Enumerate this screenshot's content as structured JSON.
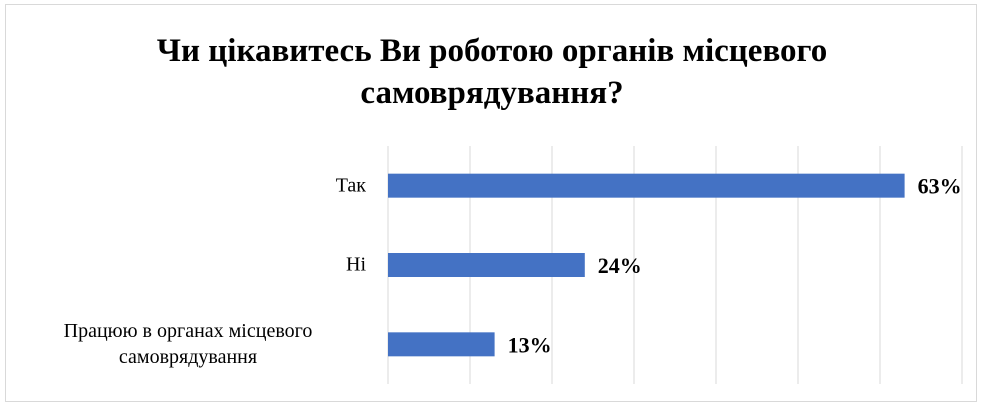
{
  "chart_data": {
    "type": "bar",
    "orientation": "horizontal",
    "title_lines": [
      "Чи цікавитесь Ви роботою органів місцевого",
      "самоврядування?"
    ],
    "categories": [
      [
        "Так"
      ],
      [
        "Ні"
      ],
      [
        "Працюю в органах місцевого",
        "самоврядування"
      ]
    ],
    "values": [
      63,
      24,
      13
    ],
    "value_labels": [
      "63%",
      "24%",
      "13%"
    ],
    "xlim": [
      0,
      70
    ],
    "grid": true,
    "legend": "none",
    "bar_color": "#4472C4",
    "grid_color": "#d9d9d9"
  }
}
